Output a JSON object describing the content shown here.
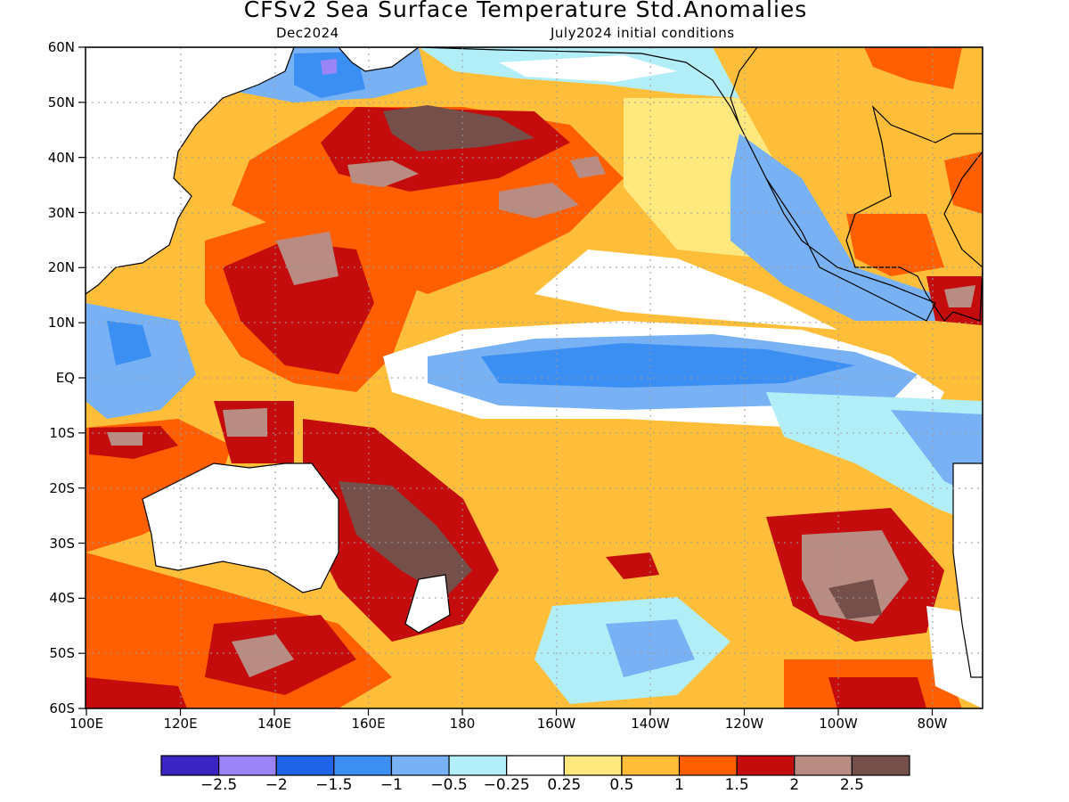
{
  "title": "CFSv2 Sea Surface Temperature Std.Anomalies",
  "valid_month": "Dec2024",
  "initial_conditions": "July2024 initial conditions",
  "lat_labels": [
    "60N",
    "50N",
    "40N",
    "30N",
    "20N",
    "10N",
    "EQ",
    "10S",
    "20S",
    "30S",
    "40S",
    "50S",
    "60S"
  ],
  "lon_labels": [
    "100E",
    "120E",
    "140E",
    "160E",
    "180",
    "160W",
    "140W",
    "120W",
    "100W",
    "80W"
  ],
  "colorbar": {
    "colors": [
      "#3a24c2",
      "#9a84f6",
      "#1f63e6",
      "#3c8ff2",
      "#78b2f5",
      "#b2eef8",
      "#ffffff",
      "#ffe97f",
      "#ffbe3a",
      "#ff5f00",
      "#c40c0c",
      "#b88c82",
      "#75504a"
    ],
    "labels": [
      "-2.5",
      "-2",
      "-1.5",
      "-1",
      "-0.5",
      "-0.25",
      "0.25",
      "0.5",
      "1",
      "1.5",
      "2",
      "2.5"
    ]
  }
}
